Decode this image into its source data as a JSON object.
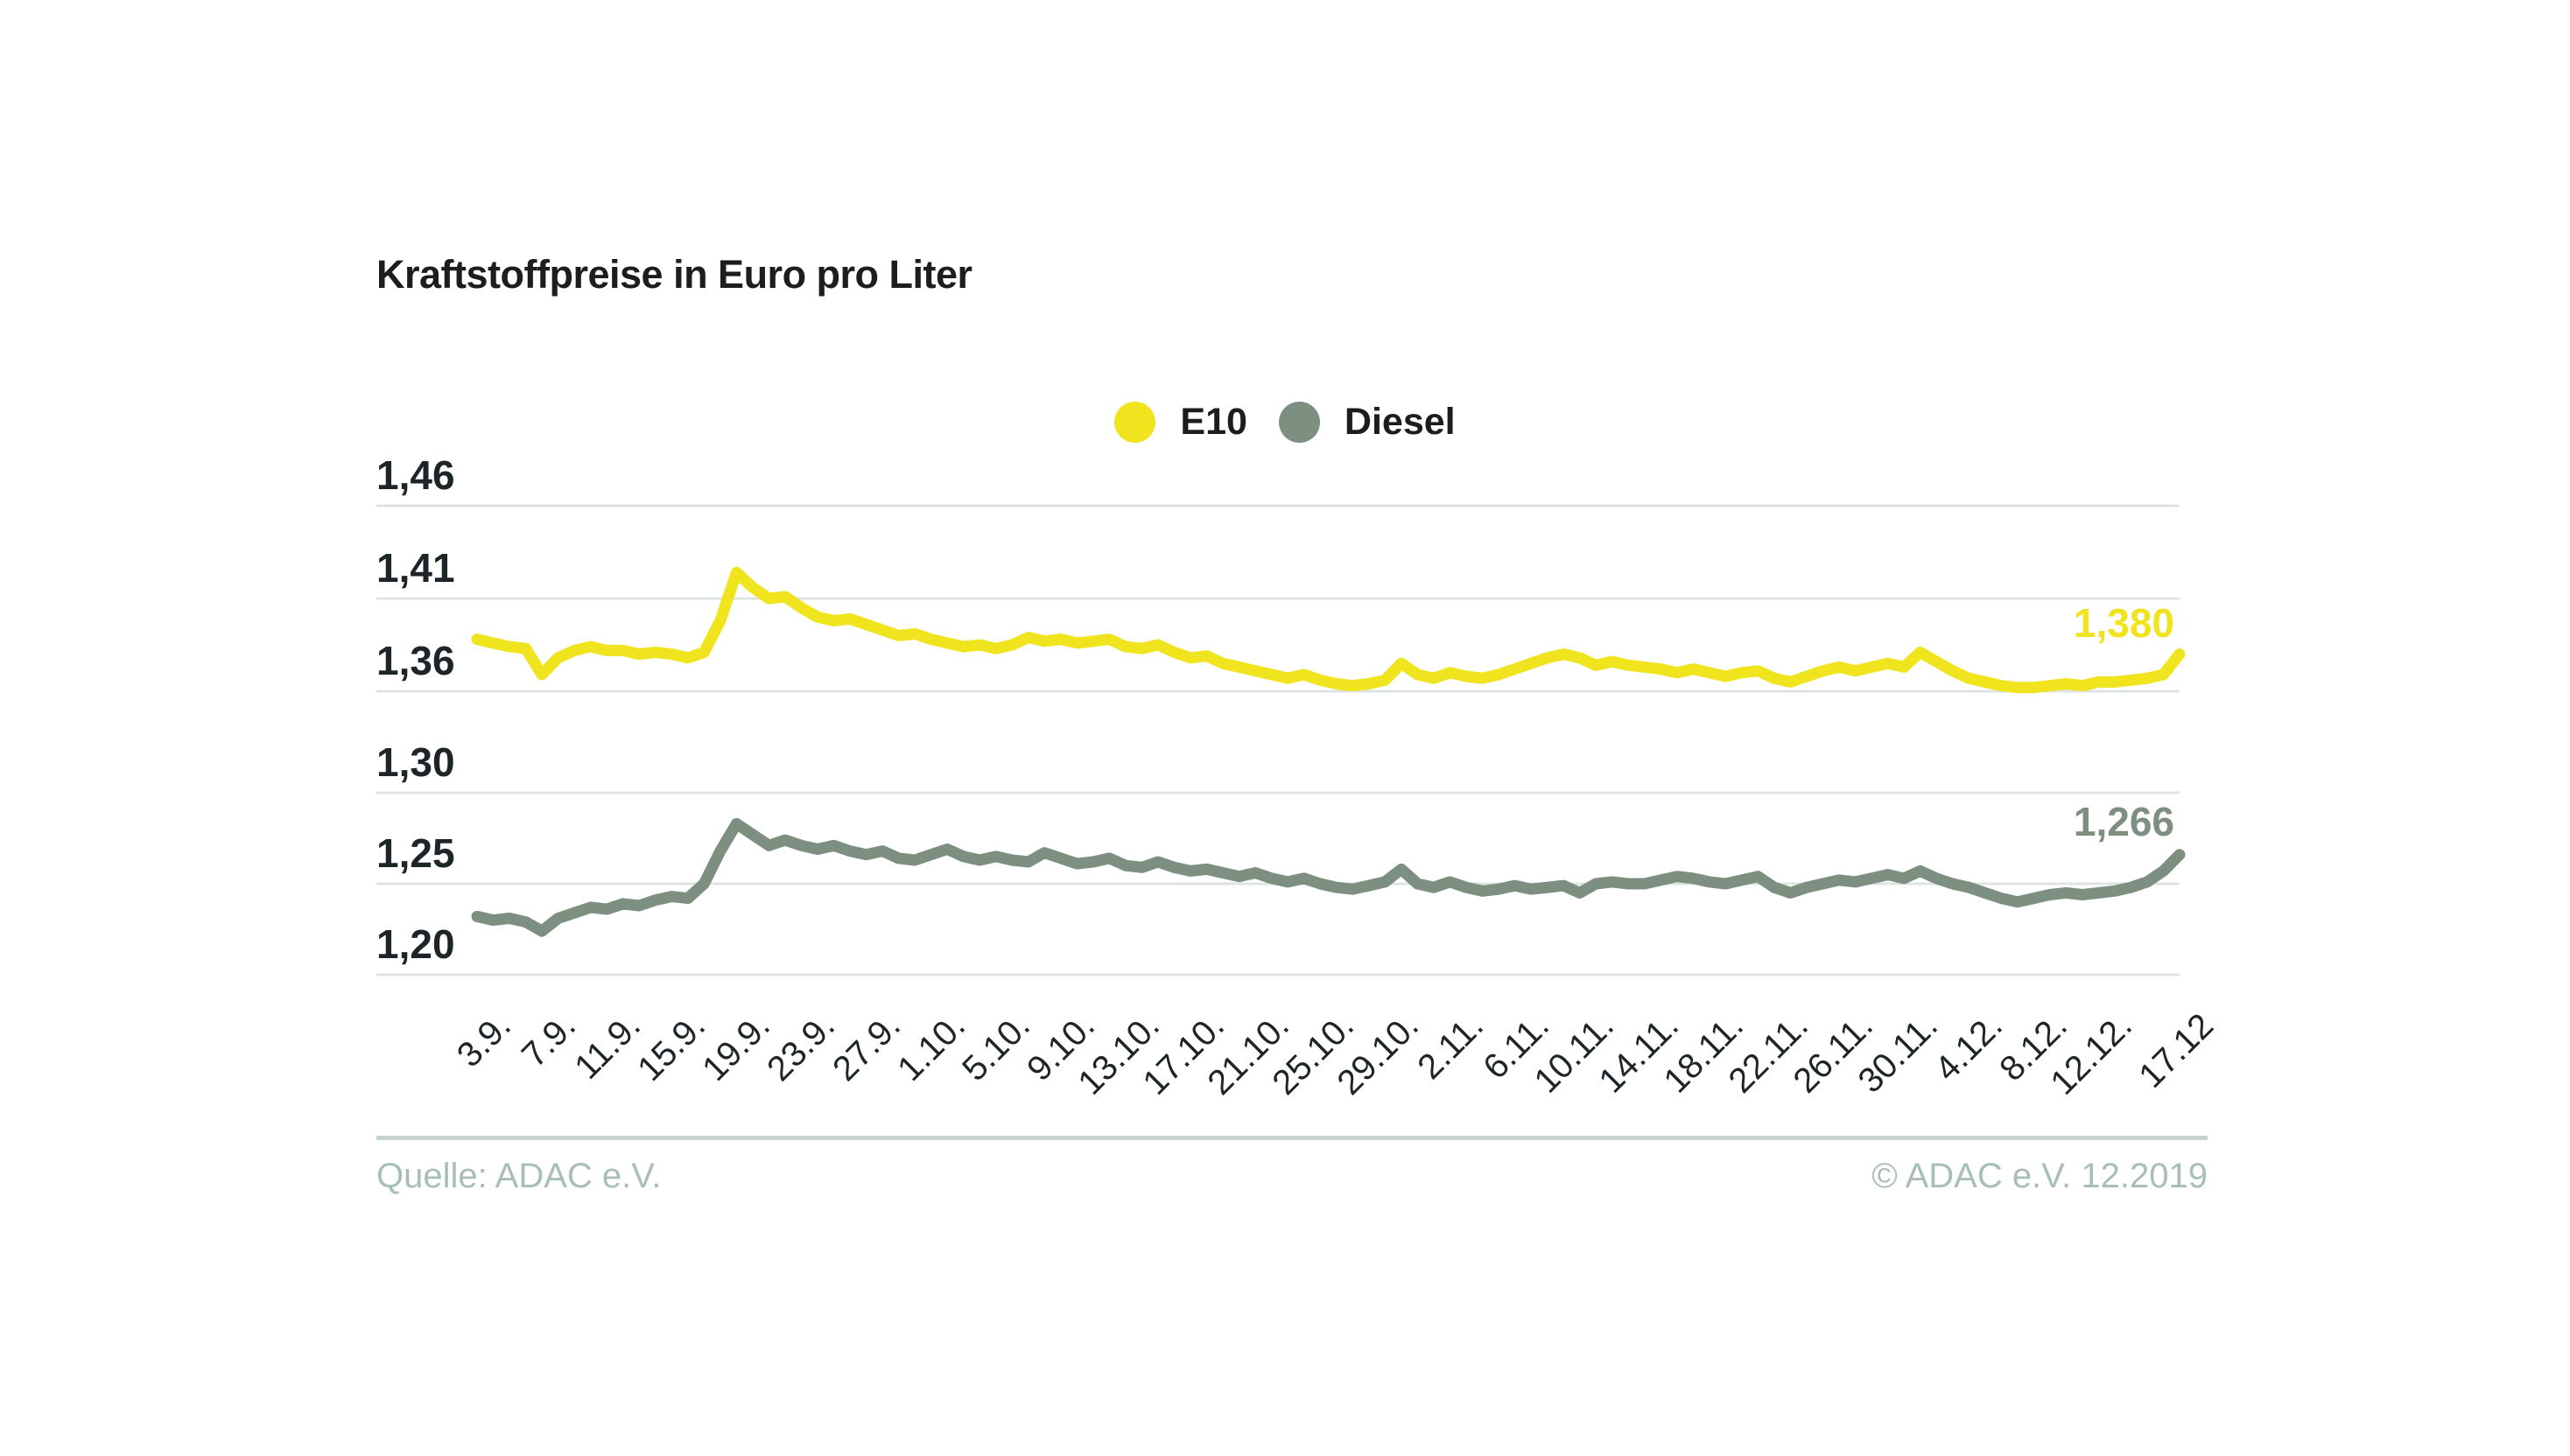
{
  "title": "Kraftstoffpreise in Euro pro Liter",
  "footer": {
    "source": "Quelle: ADAC e.V.",
    "copyright": "© ADAC e.V. 12.2019"
  },
  "chart_data": {
    "type": "line",
    "title": "Kraftstoffpreise in Euro pro Liter",
    "unit": "Euro pro Liter",
    "grid": true,
    "legend_position": "top-center",
    "broken_axis": true,
    "axis_note": "Two stacked sub-scales: upper (E10) gridlines 1,46/1,41/1,36 ; lower (Diesel) gridlines 1,30/1,25/1,20",
    "y_axis": {
      "upper_tick_labels": [
        "1,46",
        "1,41",
        "1,36"
      ],
      "upper_tick_values": [
        1.46,
        1.41,
        1.36
      ],
      "lower_tick_labels": [
        "1,30",
        "1,25",
        "1,20"
      ],
      "lower_tick_values": [
        1.3,
        1.25,
        1.2
      ],
      "upper_range": [
        1.345,
        1.47
      ],
      "lower_range": [
        1.19,
        1.315
      ]
    },
    "x_axis": {
      "tick_labels": [
        "3.9.",
        "7.9.",
        "11.9.",
        "15.9.",
        "19.9.",
        "23.9.",
        "27.9.",
        "1.10.",
        "5.10.",
        "9.10.",
        "13.10.",
        "17.10.",
        "21.10.",
        "25.10.",
        "29.10.",
        "2.11.",
        "6.11.",
        "10.11.",
        "14.11.",
        "18.11.",
        "22.11.",
        "26.11.",
        "30.11.",
        "4.12.",
        "8.12.",
        "12.12.",
        "17.12"
      ],
      "tick_day_indices": [
        0,
        4,
        8,
        12,
        16,
        20,
        24,
        28,
        32,
        36,
        40,
        44,
        48,
        52,
        56,
        60,
        64,
        68,
        72,
        76,
        80,
        84,
        88,
        92,
        96,
        100,
        105
      ],
      "total_days": 106
    },
    "series": [
      {
        "name": "E10",
        "color": "#efe41e",
        "scale": "upper",
        "end_label": "1,380",
        "last_value": 1.38,
        "values": [
          1.388,
          1.386,
          1.384,
          1.383,
          1.369,
          1.378,
          1.382,
          1.384,
          1.382,
          1.382,
          1.38,
          1.381,
          1.38,
          1.378,
          1.381,
          1.398,
          1.424,
          1.416,
          1.41,
          1.411,
          1.405,
          1.4,
          1.398,
          1.399,
          1.396,
          1.393,
          1.39,
          1.391,
          1.388,
          1.386,
          1.384,
          1.385,
          1.383,
          1.385,
          1.389,
          1.387,
          1.388,
          1.386,
          1.387,
          1.388,
          1.384,
          1.383,
          1.385,
          1.381,
          1.378,
          1.379,
          1.375,
          1.373,
          1.371,
          1.369,
          1.367,
          1.369,
          1.366,
          1.364,
          1.363,
          1.364,
          1.366,
          1.375,
          1.369,
          1.367,
          1.37,
          1.368,
          1.367,
          1.369,
          1.372,
          1.375,
          1.378,
          1.38,
          1.378,
          1.374,
          1.376,
          1.374,
          1.373,
          1.372,
          1.37,
          1.372,
          1.37,
          1.368,
          1.37,
          1.371,
          1.367,
          1.365,
          1.368,
          1.371,
          1.373,
          1.371,
          1.373,
          1.375,
          1.373,
          1.381,
          1.376,
          1.371,
          1.367,
          1.365,
          1.363,
          1.362,
          1.362,
          1.363,
          1.364,
          1.363,
          1.365,
          1.365,
          1.366,
          1.367,
          1.369,
          1.38
        ]
      },
      {
        "name": "Diesel",
        "color": "#7c8f80",
        "scale": "lower",
        "end_label": "1,266",
        "last_value": 1.266,
        "values": [
          1.232,
          1.23,
          1.231,
          1.229,
          1.224,
          1.231,
          1.234,
          1.237,
          1.236,
          1.239,
          1.238,
          1.241,
          1.243,
          1.242,
          1.25,
          1.268,
          1.283,
          1.277,
          1.271,
          1.274,
          1.271,
          1.269,
          1.271,
          1.268,
          1.266,
          1.268,
          1.264,
          1.263,
          1.266,
          1.269,
          1.265,
          1.263,
          1.265,
          1.263,
          1.262,
          1.267,
          1.264,
          1.261,
          1.262,
          1.264,
          1.26,
          1.259,
          1.262,
          1.259,
          1.257,
          1.258,
          1.256,
          1.254,
          1.256,
          1.253,
          1.251,
          1.253,
          1.25,
          1.248,
          1.247,
          1.249,
          1.251,
          1.258,
          1.25,
          1.248,
          1.251,
          1.248,
          1.246,
          1.247,
          1.249,
          1.247,
          1.248,
          1.249,
          1.245,
          1.25,
          1.251,
          1.25,
          1.25,
          1.252,
          1.254,
          1.253,
          1.251,
          1.25,
          1.252,
          1.254,
          1.248,
          1.245,
          1.248,
          1.25,
          1.252,
          1.251,
          1.253,
          1.255,
          1.253,
          1.257,
          1.253,
          1.25,
          1.248,
          1.245,
          1.242,
          1.24,
          1.242,
          1.244,
          1.245,
          1.244,
          1.245,
          1.246,
          1.248,
          1.251,
          1.257,
          1.266
        ]
      }
    ],
    "colors": {
      "gridline": "#dee4e0",
      "footer_divider": "#c6d6cc",
      "footer_text": "#a8c0b4",
      "text": "#1d1d1b"
    }
  }
}
